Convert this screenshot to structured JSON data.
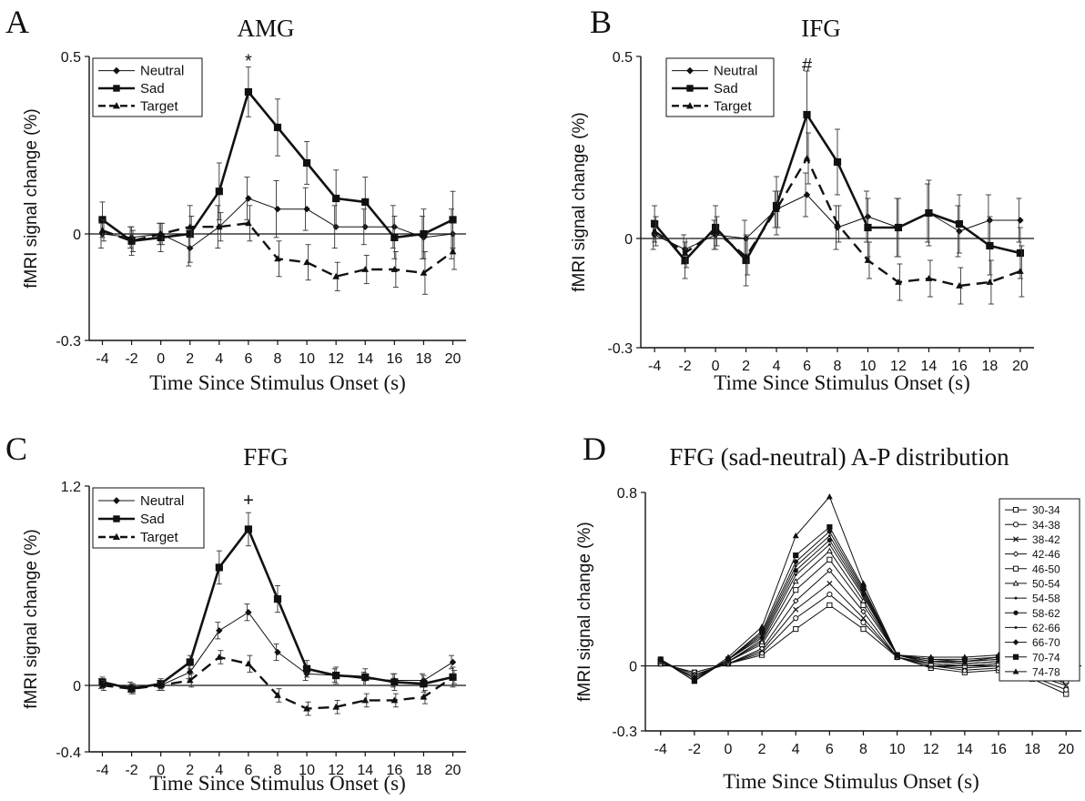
{
  "chart_data": [
    {
      "panel": "A",
      "type": "line",
      "title": "AMG",
      "xlabel": "Time Since Stimulus Onset (s)",
      "ylabel": "fMRI signal change (%)",
      "x": [
        -4,
        -2,
        0,
        2,
        4,
        6,
        8,
        10,
        12,
        14,
        16,
        18,
        20
      ],
      "xticks": [
        "-4",
        "-2",
        "0",
        "2",
        "4",
        "6",
        "8",
        "10",
        "12",
        "14",
        "16",
        "18",
        "20"
      ],
      "ylim": [
        -0.3,
        0.5
      ],
      "yticks": [
        "0.5",
        "0",
        "-0.3"
      ],
      "annotations": [
        {
          "x": 6,
          "y": 0.47,
          "text": "*"
        }
      ],
      "legend": "top-left",
      "series": [
        {
          "name": "Neutral",
          "marker": "diamond",
          "style": "thin",
          "values": [
            0.0,
            -0.01,
            0.0,
            -0.04,
            0.02,
            0.1,
            0.07,
            0.07,
            0.02,
            0.02,
            0.02,
            -0.01,
            0.0
          ],
          "errors": [
            0.04,
            0.03,
            0.03,
            0.05,
            0.06,
            0.06,
            0.08,
            0.06,
            0.06,
            0.05,
            0.06,
            0.06,
            0.07
          ]
        },
        {
          "name": "Sad",
          "marker": "square",
          "style": "thick",
          "values": [
            0.04,
            -0.02,
            -0.01,
            0.0,
            0.12,
            0.4,
            0.3,
            0.2,
            0.1,
            0.09,
            -0.01,
            0.0,
            0.04
          ],
          "errors": [
            0.05,
            0.04,
            0.04,
            0.08,
            0.08,
            0.07,
            0.08,
            0.06,
            0.08,
            0.07,
            0.06,
            0.07,
            0.08
          ]
        },
        {
          "name": "Target",
          "marker": "triangle",
          "style": "dashed",
          "values": [
            0.01,
            -0.02,
            0.0,
            0.02,
            0.02,
            0.03,
            -0.07,
            -0.08,
            -0.12,
            -0.1,
            -0.1,
            -0.11,
            -0.05
          ],
          "errors": [
            0.03,
            0.03,
            0.03,
            0.03,
            0.04,
            0.05,
            0.05,
            0.05,
            0.04,
            0.04,
            0.05,
            0.06,
            0.05
          ]
        }
      ]
    },
    {
      "panel": "B",
      "type": "line",
      "title": "IFG",
      "xlabel": "Time Since Stimulus Onset (s)",
      "ylabel": "fMRI signal change (%)",
      "x": [
        -4,
        -2,
        0,
        2,
        4,
        6,
        8,
        10,
        12,
        14,
        16,
        18,
        20
      ],
      "xticks": [
        "-4",
        "-2",
        "0",
        "2",
        "4",
        "6",
        "8",
        "10",
        "12",
        "14",
        "16",
        "18",
        "20"
      ],
      "ylim": [
        -0.3,
        0.5
      ],
      "yticks": [
        "0.5",
        "0",
        "-0.3"
      ],
      "annotations": [
        {
          "x": 6,
          "y": 0.46,
          "text": "#"
        }
      ],
      "legend": "top-left",
      "series": [
        {
          "name": "Neutral",
          "marker": "diamond",
          "style": "thin",
          "values": [
            0.01,
            -0.03,
            0.01,
            0.0,
            0.08,
            0.12,
            0.03,
            0.06,
            0.03,
            0.07,
            0.02,
            0.05,
            0.05
          ],
          "errors": [
            0.04,
            0.04,
            0.04,
            0.05,
            0.05,
            0.06,
            0.06,
            0.07,
            0.08,
            0.08,
            0.07,
            0.07,
            0.06
          ]
        },
        {
          "name": "Sad",
          "marker": "square",
          "style": "thick",
          "values": [
            0.04,
            -0.06,
            0.03,
            -0.06,
            0.09,
            0.34,
            0.21,
            0.03,
            0.03,
            0.07,
            0.04,
            -0.02,
            -0.04
          ],
          "errors": [
            0.05,
            0.05,
            0.06,
            0.07,
            0.08,
            0.12,
            0.09,
            0.08,
            0.08,
            0.09,
            0.08,
            0.08,
            0.07
          ]
        },
        {
          "name": "Target",
          "marker": "triangle",
          "style": "dashed",
          "values": [
            0.02,
            -0.04,
            0.02,
            -0.05,
            0.08,
            0.22,
            0.04,
            -0.06,
            -0.12,
            -0.11,
            -0.13,
            -0.12,
            -0.09
          ],
          "errors": [
            0.04,
            0.04,
            0.04,
            0.05,
            0.05,
            0.07,
            0.05,
            0.05,
            0.05,
            0.05,
            0.05,
            0.06,
            0.07
          ]
        }
      ]
    },
    {
      "panel": "C",
      "type": "line",
      "title": "FFG",
      "xlabel": "Time Since Stimulus Onset (s)",
      "ylabel": "fMRI signal change (%)",
      "x": [
        -4,
        -2,
        0,
        2,
        4,
        6,
        8,
        10,
        12,
        14,
        16,
        18,
        20
      ],
      "xticks": [
        "-4",
        "-2",
        "0",
        "2",
        "4",
        "6",
        "8",
        "10",
        "12",
        "14",
        "16",
        "18",
        "20"
      ],
      "ylim": [
        -0.4,
        1.2
      ],
      "yticks": [
        "1.2",
        "0",
        "-0.4"
      ],
      "annotations": [
        {
          "x": 6,
          "y": 1.08,
          "text": "+"
        }
      ],
      "legend": "top-left",
      "series": [
        {
          "name": "Neutral",
          "marker": "diamond",
          "style": "thin",
          "values": [
            0.01,
            -0.01,
            0.0,
            0.08,
            0.33,
            0.44,
            0.2,
            0.07,
            0.06,
            0.04,
            0.03,
            0.03,
            0.14
          ],
          "errors": [
            0.03,
            0.03,
            0.03,
            0.04,
            0.05,
            0.05,
            0.05,
            0.04,
            0.04,
            0.04,
            0.04,
            0.04,
            0.04
          ]
        },
        {
          "name": "Sad",
          "marker": "square",
          "style": "thick",
          "values": [
            0.02,
            -0.02,
            0.01,
            0.14,
            0.71,
            0.94,
            0.52,
            0.1,
            0.06,
            0.05,
            0.02,
            0.01,
            0.05
          ],
          "errors": [
            0.03,
            0.03,
            0.03,
            0.04,
            0.1,
            0.1,
            0.08,
            0.05,
            0.05,
            0.05,
            0.05,
            0.05,
            0.06
          ]
        },
        {
          "name": "Target",
          "marker": "triangle",
          "style": "dashed",
          "values": [
            0.0,
            -0.02,
            0.0,
            0.03,
            0.17,
            0.13,
            -0.06,
            -0.14,
            -0.13,
            -0.09,
            -0.09,
            -0.07,
            0.05
          ],
          "errors": [
            0.03,
            0.03,
            0.03,
            0.04,
            0.04,
            0.05,
            0.04,
            0.04,
            0.04,
            0.04,
            0.04,
            0.04,
            0.04
          ]
        }
      ]
    },
    {
      "panel": "D",
      "type": "line",
      "title": "FFG (sad-neutral) A-P distribution",
      "xlabel": "Time Since Stimulus Onset (s)",
      "ylabel": "fMRI signal change (%)",
      "x": [
        -4,
        -2,
        0,
        2,
        4,
        6,
        8,
        10,
        12,
        14,
        16,
        18,
        20
      ],
      "xticks": [
        "-4",
        "-2",
        "0",
        "2",
        "4",
        "6",
        "8",
        "10",
        "12",
        "14",
        "16",
        "18",
        "20"
      ],
      "ylim": [
        -0.3,
        0.8
      ],
      "yticks": [
        "0.8",
        "0",
        "-0.3"
      ],
      "legend": "top-right",
      "series": [
        {
          "name": "30-34",
          "marker": "open-square",
          "values": [
            0.01,
            -0.03,
            0.01,
            0.05,
            0.17,
            0.28,
            0.17,
            0.04,
            -0.01,
            -0.03,
            -0.02,
            -0.06,
            -0.13
          ]
        },
        {
          "name": "34-38",
          "marker": "open-circle",
          "values": [
            0.01,
            -0.03,
            0.01,
            0.06,
            0.22,
            0.33,
            0.2,
            0.04,
            0.0,
            -0.02,
            -0.01,
            -0.05,
            -0.11
          ]
        },
        {
          "name": "38-42",
          "marker": "x",
          "values": [
            0.02,
            -0.04,
            0.01,
            0.07,
            0.26,
            0.38,
            0.22,
            0.04,
            0.0,
            -0.01,
            0.0,
            -0.04,
            -0.09
          ]
        },
        {
          "name": "42-46",
          "marker": "open-diamond",
          "values": [
            0.02,
            -0.04,
            0.01,
            0.08,
            0.3,
            0.44,
            0.25,
            0.04,
            0.01,
            0.0,
            0.01,
            -0.03,
            -0.08
          ]
        },
        {
          "name": "46-50",
          "marker": "open-square",
          "values": [
            0.02,
            -0.05,
            0.02,
            0.1,
            0.35,
            0.49,
            0.28,
            0.05,
            0.01,
            0.0,
            0.01,
            -0.02,
            -0.07
          ]
        },
        {
          "name": "50-54",
          "marker": "open-triangle",
          "values": [
            0.02,
            -0.05,
            0.02,
            0.11,
            0.39,
            0.53,
            0.3,
            0.05,
            0.02,
            0.01,
            0.02,
            -0.02,
            -0.06
          ]
        },
        {
          "name": "54-58",
          "marker": "dot",
          "values": [
            0.02,
            -0.05,
            0.02,
            0.12,
            0.42,
            0.56,
            0.32,
            0.05,
            0.02,
            0.01,
            0.02,
            -0.01,
            -0.06
          ]
        },
        {
          "name": "58-62",
          "marker": "filled-circle",
          "values": [
            0.03,
            -0.06,
            0.03,
            0.13,
            0.44,
            0.58,
            0.33,
            0.05,
            0.02,
            0.02,
            0.03,
            -0.01,
            -0.05
          ]
        },
        {
          "name": "62-66",
          "marker": "dot",
          "values": [
            0.03,
            -0.06,
            0.03,
            0.14,
            0.46,
            0.6,
            0.34,
            0.05,
            0.02,
            0.02,
            0.03,
            0.0,
            -0.05
          ]
        },
        {
          "name": "66-70",
          "marker": "filled-diamond",
          "values": [
            0.03,
            -0.07,
            0.03,
            0.15,
            0.48,
            0.62,
            0.35,
            0.05,
            0.03,
            0.02,
            0.04,
            0.0,
            -0.04
          ]
        },
        {
          "name": "70-74",
          "marker": "filled-square",
          "values": [
            0.03,
            -0.07,
            0.03,
            0.16,
            0.51,
            0.64,
            0.36,
            0.05,
            0.03,
            0.03,
            0.04,
            0.01,
            -0.04
          ]
        },
        {
          "name": "74-78",
          "marker": "filled-triangle",
          "values": [
            0.03,
            -0.07,
            0.04,
            0.18,
            0.6,
            0.78,
            0.38,
            0.05,
            0.04,
            0.04,
            0.05,
            0.01,
            -0.03
          ]
        }
      ]
    }
  ]
}
